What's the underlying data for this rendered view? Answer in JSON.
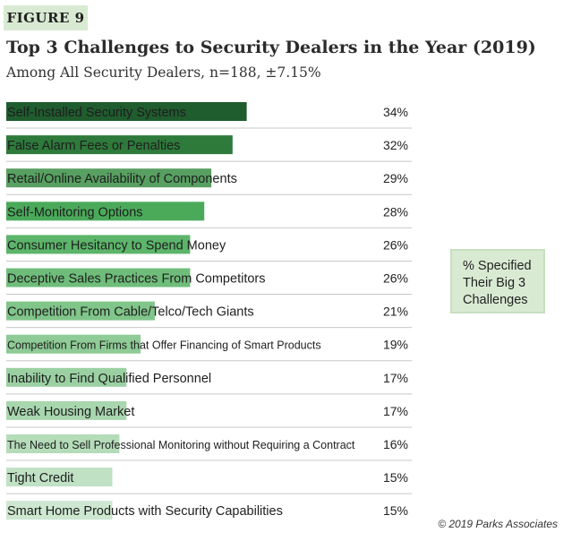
{
  "figure_label": "FIGURE 9",
  "title": "Top 3 Challenges to Security Dealers in the Year (2019)",
  "subtitle": "Among All Security Dealers, n=188, ±7.15%",
  "legend_text": "% Specified Their Big 3 Challenges",
  "copyright": "© 2019 Parks Associates",
  "colors": {
    "header_bg": "#d9ead3",
    "bar_scale": [
      "#1f5c2e",
      "#2e7a3b",
      "#58a061",
      "#4aaa5a",
      "#5cb56a",
      "#6fbd7a",
      "#80c58a",
      "#8ecb96",
      "#9bd1a2",
      "#a8d6ae",
      "#b4dcb9",
      "#c0e1c4",
      "#cde7d0"
    ]
  },
  "chart_data": {
    "type": "bar",
    "orientation": "horizontal",
    "title": "Top 3 Challenges to Security Dealers in the Year (2019)",
    "subtitle": "Among All Security Dealers, n=188, ±7.15%",
    "unit": "%",
    "xlim": [
      0,
      50
    ],
    "categories": [
      "Self-Installed Security Systems",
      "False Alarm Fees or Penalties",
      "Retail/Online Availability of Components",
      "Self-Monitoring Options",
      "Consumer Hesitancy to Spend Money",
      "Deceptive Sales Practices From Competitors",
      "Competition From Cable/Telco/Tech Giants",
      "Competition From Firms that Offer Financing of Smart Products",
      "Inability to Find Qualified Personnel",
      "Weak Housing Market",
      "The Need to Sell Professional Monitoring without Requiring a Contract",
      "Tight Credit",
      "Smart Home Products with Security Capabilities"
    ],
    "values": [
      34,
      32,
      29,
      28,
      26,
      26,
      21,
      19,
      17,
      17,
      16,
      15,
      15
    ],
    "value_labels": [
      "34%",
      "32%",
      "29%",
      "28%",
      "26%",
      "26%",
      "21%",
      "19%",
      "17%",
      "17%",
      "16%",
      "15%",
      "15%"
    ],
    "legend": "% Specified Their Big 3 Challenges"
  }
}
